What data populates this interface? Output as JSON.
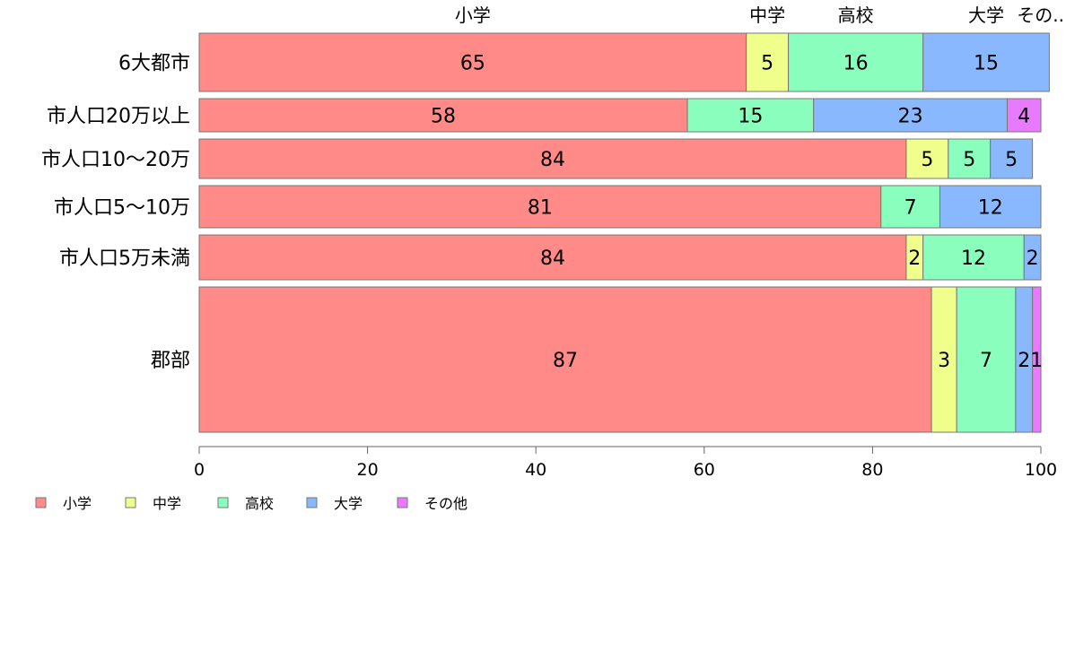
{
  "chart_data": {
    "type": "bar",
    "orientation": "horizontal-stacked-100",
    "title": "",
    "xlabel": "",
    "ylabel": "",
    "xlim": [
      0,
      100
    ],
    "x_ticks": [
      "0",
      "20",
      "40",
      "60",
      "80",
      "100"
    ],
    "grid": false,
    "legend_position": "bottom-left",
    "categories": [
      "6大都市",
      "市人口20万以上",
      "市人口10〜20万",
      "市人口5〜10万",
      "市人口5万未満",
      "郡部"
    ],
    "top_labels": [
      "小学",
      "中学",
      "高校",
      "大学",
      "その.."
    ],
    "series": [
      {
        "name": "小学",
        "color": "#ff8a87",
        "values": [
          65,
          58,
          84,
          81,
          84,
          87
        ]
      },
      {
        "name": "中学",
        "color": "#f0ff8c",
        "values": [
          5,
          0,
          5,
          0,
          2,
          3
        ]
      },
      {
        "name": "高校",
        "color": "#8affbd",
        "values": [
          16,
          15,
          5,
          7,
          12,
          7
        ]
      },
      {
        "name": "大学",
        "color": "#8ab8ff",
        "values": [
          15,
          23,
          5,
          12,
          2,
          2
        ]
      },
      {
        "name": "その他",
        "color": "#e87aff",
        "values": [
          0,
          4,
          0,
          0,
          0,
          1
        ]
      }
    ]
  }
}
